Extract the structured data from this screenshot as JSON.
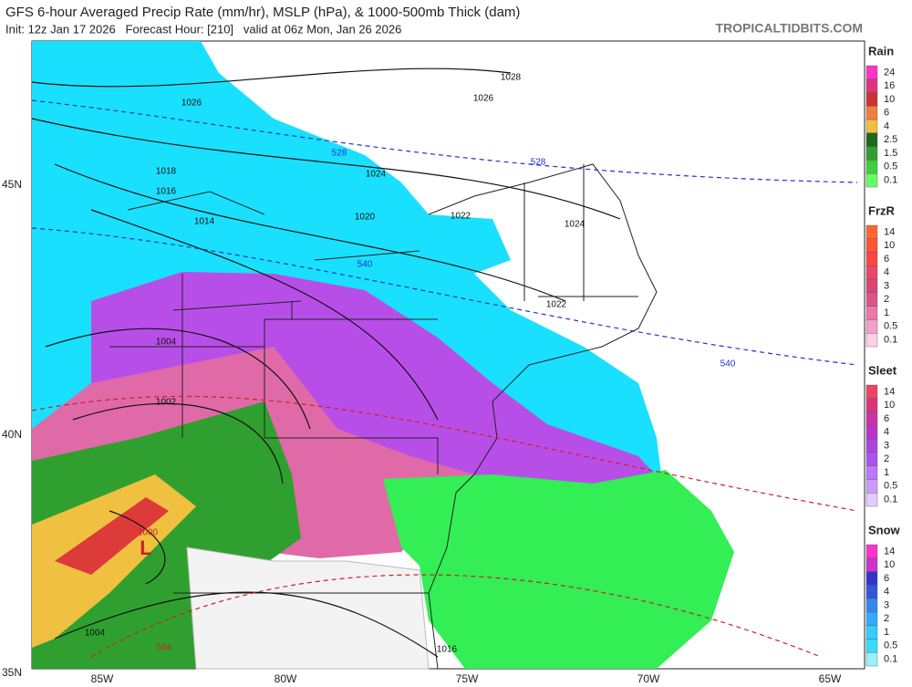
{
  "header": {
    "title": "GFS 6-hour Averaged Precip Rate (mm/hr), MSLP (hPa), & 1000-500mb Thick (dam)",
    "subtitle": "Init: 12z Jan 17 2026   Forecast Hour: [210]   valid at 06z Mon, Jan 26 2026",
    "site": "TROPICALTIDBITS.COM"
  },
  "legends": [
    {
      "title": "Rain",
      "labels": [
        "24",
        "16",
        "10",
        "6",
        "4",
        "2.5",
        "1.5",
        "0.5",
        "0.1"
      ],
      "colors": [
        "#ff33cc",
        "#e0337f",
        "#cc3333",
        "#f08040",
        "#f0c040",
        "#1a6b1a",
        "#2fa02f",
        "#3ecf3e",
        "#66ff66"
      ]
    },
    {
      "title": "FrzR",
      "labels": [
        "14",
        "10",
        "6",
        "4",
        "3",
        "2",
        "1",
        "0.5",
        "0.1"
      ],
      "colors": [
        "#ff6633",
        "#ff5533",
        "#ff4444",
        "#ee4466",
        "#dd4477",
        "#dd5588",
        "#ee77aa",
        "#f4a0c8",
        "#fbd0e4"
      ]
    },
    {
      "title": "Sleet",
      "labels": [
        "14",
        "10",
        "6",
        "4",
        "3",
        "2",
        "1",
        "0.5",
        "0.1"
      ],
      "colors": [
        "#ee4466",
        "#dd3377",
        "#cc33aa",
        "#bb33cc",
        "#aa44dd",
        "#aa55ee",
        "#bb77ff",
        "#cc99ff",
        "#e0ccff"
      ]
    },
    {
      "title": "Snow",
      "labels": [
        "14",
        "10",
        "6",
        "4",
        "3",
        "2",
        "1",
        "0.5",
        "0.1"
      ],
      "colors": [
        "#ff33cc",
        "#cc33cc",
        "#3333cc",
        "#3355dd",
        "#3388ee",
        "#33aaff",
        "#33ccff",
        "#33ddff",
        "#99f0ff"
      ]
    }
  ],
  "latitude_labels": [
    "45N",
    "40N",
    "35N"
  ],
  "longitude_labels": [
    "85W",
    "80W",
    "75W",
    "70W",
    "65W"
  ],
  "isobar_labels": [
    "1028",
    "1026",
    "1026",
    "1024",
    "1024",
    "1022",
    "1022",
    "1020",
    "1018",
    "1016",
    "1014",
    "1004",
    "1002",
    "1000",
    "1004",
    "1016"
  ],
  "thickness_labels": [
    "528",
    "528",
    "540",
    "540",
    "564"
  ],
  "low_marker": "L"
}
